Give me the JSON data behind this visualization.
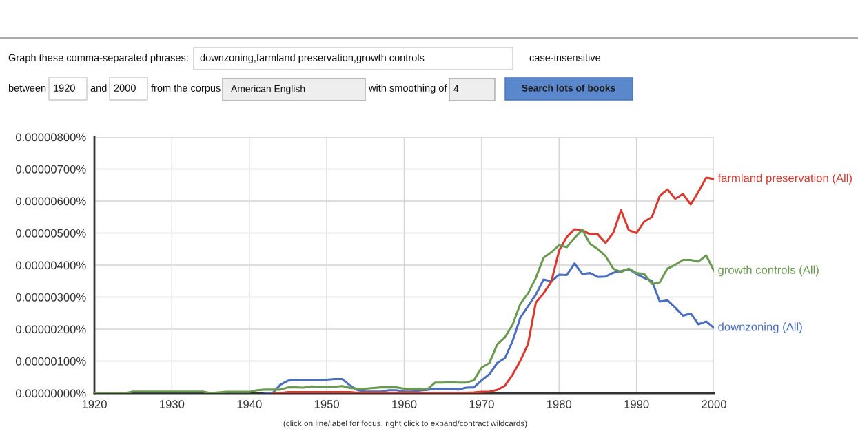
{
  "chart_data": {
    "type": "line",
    "x": [
      1920,
      1921,
      1922,
      1923,
      1924,
      1925,
      1926,
      1927,
      1928,
      1929,
      1930,
      1931,
      1932,
      1933,
      1934,
      1935,
      1936,
      1937,
      1938,
      1939,
      1940,
      1941,
      1942,
      1943,
      1944,
      1945,
      1946,
      1947,
      1948,
      1949,
      1950,
      1951,
      1952,
      1953,
      1954,
      1955,
      1956,
      1957,
      1958,
      1959,
      1960,
      1961,
      1962,
      1963,
      1964,
      1965,
      1966,
      1967,
      1968,
      1969,
      1970,
      1971,
      1972,
      1973,
      1974,
      1975,
      1976,
      1977,
      1978,
      1979,
      1980,
      1981,
      1982,
      1983,
      1984,
      1985,
      1986,
      1987,
      1988,
      1989,
      1990,
      1991,
      1992,
      1993,
      1994,
      1995,
      1996,
      1997,
      1998,
      1999,
      2000
    ],
    "series": [
      {
        "name": "downzoning (All)",
        "color": "#4a6fbf",
        "values": [
          null,
          null,
          null,
          null,
          null,
          null,
          null,
          null,
          null,
          null,
          null,
          null,
          null,
          null,
          null,
          null,
          null,
          null,
          null,
          null,
          null,
          null,
          0,
          0,
          2.6e-07,
          3.9e-07,
          4.2e-07,
          4.2e-07,
          4.2e-07,
          4.2e-07,
          4.2e-07,
          4.4e-07,
          4.4e-07,
          2.4e-07,
          9e-08,
          5e-08,
          5e-08,
          5e-08,
          9e-08,
          9e-08,
          5e-08,
          5e-08,
          8e-08,
          1e-07,
          1.4e-07,
          1.4e-07,
          1.4e-07,
          1.1e-07,
          1.7e-07,
          1.8e-07,
          4e-07,
          5.9e-07,
          9.4e-07,
          1.09e-06,
          1.63e-06,
          2.36e-06,
          2.72e-06,
          3.08e-06,
          3.55e-06,
          3.49e-06,
          3.7e-06,
          3.69e-06,
          4.05e-06,
          3.72e-06,
          3.75e-06,
          3.63e-06,
          3.64e-06,
          3.76e-06,
          3.81e-06,
          3.87e-06,
          3.72e-06,
          3.6e-06,
          3.5e-06,
          2.86e-06,
          2.9e-06,
          2.67e-06,
          2.42e-06,
          2.49e-06,
          2.15e-06,
          2.24e-06,
          2.04e-06
        ]
      },
      {
        "name": "farmland preservation (All)",
        "color": "#d93a2f",
        "values": [
          null,
          null,
          null,
          null,
          null,
          null,
          null,
          null,
          null,
          null,
          null,
          null,
          null,
          null,
          null,
          null,
          null,
          null,
          null,
          null,
          null,
          null,
          null,
          0,
          0,
          3e-08,
          3e-08,
          3e-08,
          3e-08,
          3e-08,
          3e-08,
          3e-08,
          3e-08,
          3e-08,
          1e-08,
          1e-08,
          1e-08,
          1e-08,
          1e-08,
          1e-08,
          1e-08,
          1e-08,
          1e-08,
          1e-08,
          1e-08,
          1e-08,
          1e-08,
          1e-08,
          1e-08,
          2e-08,
          4e-08,
          5e-08,
          1e-07,
          2.3e-07,
          5.8e-07,
          1.01e-06,
          1.54e-06,
          2.83e-06,
          3.12e-06,
          3.48e-06,
          4.45e-06,
          4.88e-06,
          5.12e-06,
          5.09e-06,
          4.96e-06,
          4.96e-06,
          4.69e-06,
          5.01e-06,
          5.71e-06,
          5.09e-06,
          5e-06,
          5.36e-06,
          5.5e-06,
          6.16e-06,
          6.36e-06,
          6.07e-06,
          6.22e-06,
          5.89e-06,
          6.29e-06,
          6.73e-06,
          6.69e-06
        ]
      },
      {
        "name": "growth controls (All)",
        "color": "#6a9a4f",
        "values": [
          0,
          0,
          0,
          0,
          0,
          5e-08,
          5e-08,
          5e-08,
          5e-08,
          5e-08,
          5e-08,
          5e-08,
          5e-08,
          5e-08,
          5e-08,
          0,
          2e-08,
          4e-08,
          4e-08,
          4e-08,
          4e-08,
          9e-08,
          1.1e-07,
          1.1e-07,
          1.1e-07,
          1.8e-07,
          1.8e-07,
          1.7e-07,
          2.1e-07,
          2e-07,
          2e-07,
          2e-07,
          2.2e-07,
          1.6e-07,
          1.4e-07,
          1.4e-07,
          1.6e-07,
          1.8e-07,
          1.8e-07,
          1.8e-07,
          1.4e-07,
          1.4e-07,
          1.3e-07,
          1.2e-07,
          3.3e-07,
          3.3e-07,
          3.4e-07,
          3.3e-07,
          3.3e-07,
          4e-07,
          8e-07,
          9.4e-07,
          1.52e-06,
          1.74e-06,
          2.14e-06,
          2.79e-06,
          3.12e-06,
          3.6e-06,
          4.23e-06,
          4.4e-06,
          4.62e-06,
          4.56e-06,
          4.85e-06,
          5.1e-06,
          4.66e-06,
          4.5e-06,
          4.28e-06,
          3.89e-06,
          3.78e-06,
          3.89e-06,
          3.75e-06,
          3.72e-06,
          3.41e-06,
          3.46e-06,
          3.89e-06,
          4.01e-06,
          4.16e-06,
          4.16e-06,
          4.11e-06,
          4.3e-06,
          3.82e-06
        ]
      }
    ],
    "xlim": [
      1920,
      2000
    ],
    "xticks": [
      1920,
      1930,
      1940,
      1950,
      1960,
      1970,
      1980,
      1990,
      2000
    ],
    "ylim": [
      0,
      8e-06
    ],
    "yticks": [
      {
        "value": 0,
        "label": "0.00000000%"
      },
      {
        "value": 1e-06,
        "label": "0.00000100%"
      },
      {
        "value": 2e-06,
        "label": "0.00000200%"
      },
      {
        "value": 3e-06,
        "label": "0.00000300%"
      },
      {
        "value": 4e-06,
        "label": "0.00000400%"
      },
      {
        "value": 5e-06,
        "label": "0.00000500%"
      },
      {
        "value": 6e-06,
        "label": "0.00000600%"
      },
      {
        "value": 7e-06,
        "label": "0.00000700%"
      },
      {
        "value": 8e-06,
        "label": "0.00000800%"
      }
    ],
    "grid": true,
    "legend": false,
    "marker": "none",
    "line_style": "solid",
    "annotations": [
      "Graph these comma-separated phrases:",
      "downzoning,farmland preservation,growth controls",
      "case-insensitive",
      "between",
      "1920",
      "and",
      "2000",
      "from the corpus",
      "American English",
      "with smoothing of",
      "4",
      "Search lots of books",
      "(click on line/label for focus, right click to expand/contract wildcards)"
    ]
  }
}
